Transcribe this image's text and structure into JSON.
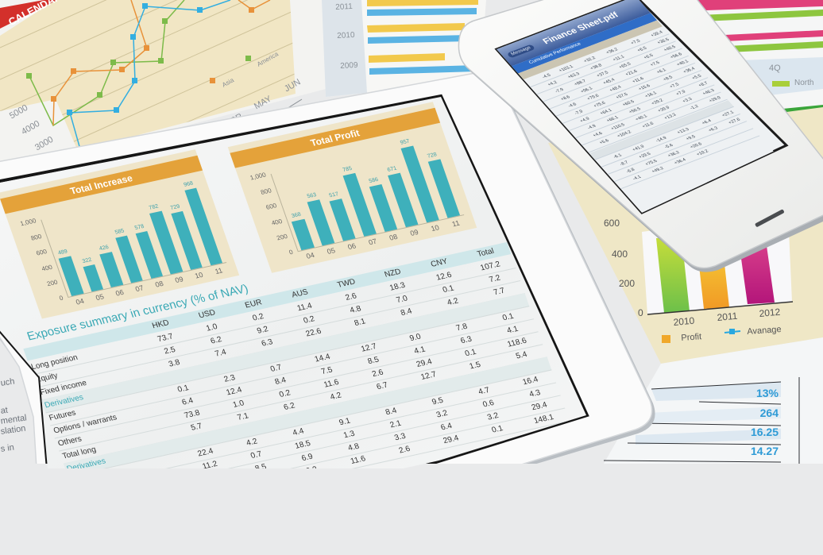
{
  "top_left_document": {
    "banner": "CALENDAR",
    "y_ticks": [
      "5000",
      "4000",
      "3000"
    ],
    "x_ticks": [
      "APR",
      "MAY",
      "JUN"
    ],
    "legend": [
      "Asia",
      "America"
    ],
    "colors": {
      "asia": "#e8923a",
      "america": "#7dbb4a",
      "third": "#33aee0"
    }
  },
  "top_middle_document": {
    "years": [
      "2011",
      "2010",
      "2009"
    ]
  },
  "top_right_document": {
    "quarter": "4Q",
    "legend": "North"
  },
  "left_document": {
    "fragments": [
      "uch",
      "at",
      "mental",
      "slation",
      "s in"
    ]
  },
  "tablet": {
    "charts": [
      {
        "title": "Total Increase",
        "type": "bar",
        "categories": [
          "04",
          "05",
          "06",
          "07",
          "08",
          "09",
          "10",
          "11"
        ],
        "values": [
          489,
          322,
          426,
          585,
          578,
          782,
          729,
          968
        ],
        "y_ticks": [
          "0",
          "200",
          "400",
          "600",
          "800",
          "1,000"
        ],
        "ylim": [
          0,
          1000
        ],
        "color": "#3eb0bb"
      },
      {
        "title": "Total Profit",
        "type": "bar",
        "categories": [
          "04",
          "05",
          "06",
          "07",
          "08",
          "09",
          "10",
          "11"
        ],
        "values": [
          368,
          563,
          517,
          785,
          586,
          671,
          957,
          728
        ],
        "y_ticks": [
          "0",
          "200",
          "400",
          "600",
          "800",
          "1,000"
        ],
        "ylim": [
          0,
          1000
        ],
        "color": "#3eb0bb"
      }
    ],
    "table": {
      "title": "Exposure summary in currency (% of NAV)",
      "columns": [
        "HKD",
        "USD",
        "EUR",
        "AUS",
        "TWD",
        "NZD",
        "CNY",
        "Total"
      ],
      "rows": [
        {
          "label": "Long position",
          "section": false,
          "values": [
            "73.7",
            "1.0",
            "0.2",
            "11.4",
            "2.6",
            "18.3",
            "12.6",
            "107.2"
          ]
        },
        {
          "label": "Equity",
          "section": false,
          "values": [
            "2.5",
            "6.2",
            "9.2",
            "0.2",
            "4.8",
            "7.0",
            "0.1",
            "7.2"
          ]
        },
        {
          "label": "Fixed income",
          "section": false,
          "values": [
            "3.8",
            "7.4",
            "6.3",
            "22.6",
            "8.1",
            "8.4",
            "4.2",
            "7.7"
          ]
        },
        {
          "label": "Derivatives",
          "section": true,
          "values": []
        },
        {
          "label": "Futures",
          "section": false,
          "values": [
            "0.1",
            "2.3",
            "0.7",
            "14.4",
            "12.7",
            "9.0",
            "7.8",
            "0.1"
          ]
        },
        {
          "label": "Options / warrants",
          "section": false,
          "values": [
            "6.4",
            "12.4",
            "8.4",
            "7.5",
            "8.5",
            "4.1",
            "6.3",
            "4.1"
          ]
        },
        {
          "label": "Others",
          "section": false,
          "values": [
            "73.8",
            "1.0",
            "0.2",
            "11.6",
            "2.6",
            "29.4",
            "0.1",
            "118.6"
          ]
        },
        {
          "label": "Total long",
          "section": false,
          "values": [
            "5.7",
            "7.1",
            "6.2",
            "4.2",
            "6.7",
            "12.7",
            "1.5",
            "5.4"
          ]
        },
        {
          "label": "Derivatives",
          "section": true,
          "values": []
        },
        {
          "label": "Futures",
          "section": false,
          "values": [
            "22.4",
            "4.2",
            "4.4",
            "9.1",
            "8.4",
            "9.5",
            "4.7",
            "16.4"
          ]
        },
        {
          "label": "Options / warrants",
          "section": false,
          "values": [
            "11.2",
            "0.7",
            "18.5",
            "1.3",
            "2.1",
            "3.2",
            "0.6",
            "4.3"
          ]
        },
        {
          "label": "",
          "section": false,
          "values": [
            "",
            "8.5",
            "6.9",
            "4.8",
            "3.3",
            "6.4",
            "3.2",
            "29.4"
          ]
        },
        {
          "label": "",
          "section": false,
          "values": [
            "",
            "1.0",
            "0.2",
            "11.6",
            "2.6",
            "29.4",
            "0.1",
            "148.1"
          ]
        }
      ]
    }
  },
  "phone": {
    "title": "Finance Sheet.pdf",
    "back_button": "Message",
    "section": "Cumulative Performance",
    "rows": [
      [
        "-4.5",
        "+103.1",
        "+32.2",
        "+36.2",
        "+7.5",
        "+39.4"
      ],
      [
        "+4.2",
        "+63.3",
        "+38.8",
        "+11.1",
        "+6.5",
        "+36.5"
      ],
      [
        "-7.9",
        "+88.7",
        "+37.5",
        "+65.5",
        "+6.5",
        "+40.5"
      ],
      [
        "+8.6",
        "+96.1",
        "+45.4",
        "+21.6",
        "+7.5",
        "+56.6"
      ],
      [
        "-4.6",
        "+79.6",
        "+48.4",
        "+11.6",
        "+6.1",
        "+40.1"
      ],
      [
        "-7.9",
        "+75.6",
        "+57.5",
        "+15.6",
        "+8.5",
        "+36.4"
      ],
      [
        "+4.9",
        "+64.1",
        "+60.5",
        "+16.1",
        "+7.5",
        "+5.5"
      ],
      [
        "-4.9",
        "+66.1",
        "+50.5",
        "+29.2",
        "+7.9",
        "+8.7"
      ],
      [
        "+4.6",
        "+110.5",
        "+40.1",
        "+39.9",
        "+3.3",
        "+46.3"
      ],
      [
        "+5.6",
        "+104.2",
        "+11.6",
        "+13.3",
        "-1.2",
        "+29.9"
      ],
      [
        "",
        "",
        "",
        "",
        "",
        ""
      ],
      [
        "-6.1",
        "+41.9",
        "-14.9",
        "+13.3",
        "+6.4",
        "+27.1"
      ],
      [
        "-8.7",
        "+29.5",
        "-5.6",
        "+9.5",
        "+6.3",
        "+27.6"
      ],
      [
        "-6.8",
        "+75.5",
        "+36.2",
        "+20.6",
        "",
        ""
      ],
      [
        "-4.1",
        "+49.2",
        "+36.4",
        "+19.2",
        "",
        ""
      ]
    ]
  },
  "bar_chart_document": {
    "y_ticks": [
      "600",
      "400",
      "200",
      "0"
    ],
    "x_ticks": [
      "2010",
      "2011",
      "2012"
    ],
    "legend": [
      "Profit",
      "Avanage"
    ],
    "colors": {
      "2010": "#8cc63f",
      "2011": "#f4a623",
      "2012": "#c9197a",
      "avanage": "#29a8e0"
    }
  },
  "stats_document": {
    "values": [
      "13%",
      "264",
      "16.25",
      "14.27"
    ],
    "color": "#2f9bd6"
  }
}
